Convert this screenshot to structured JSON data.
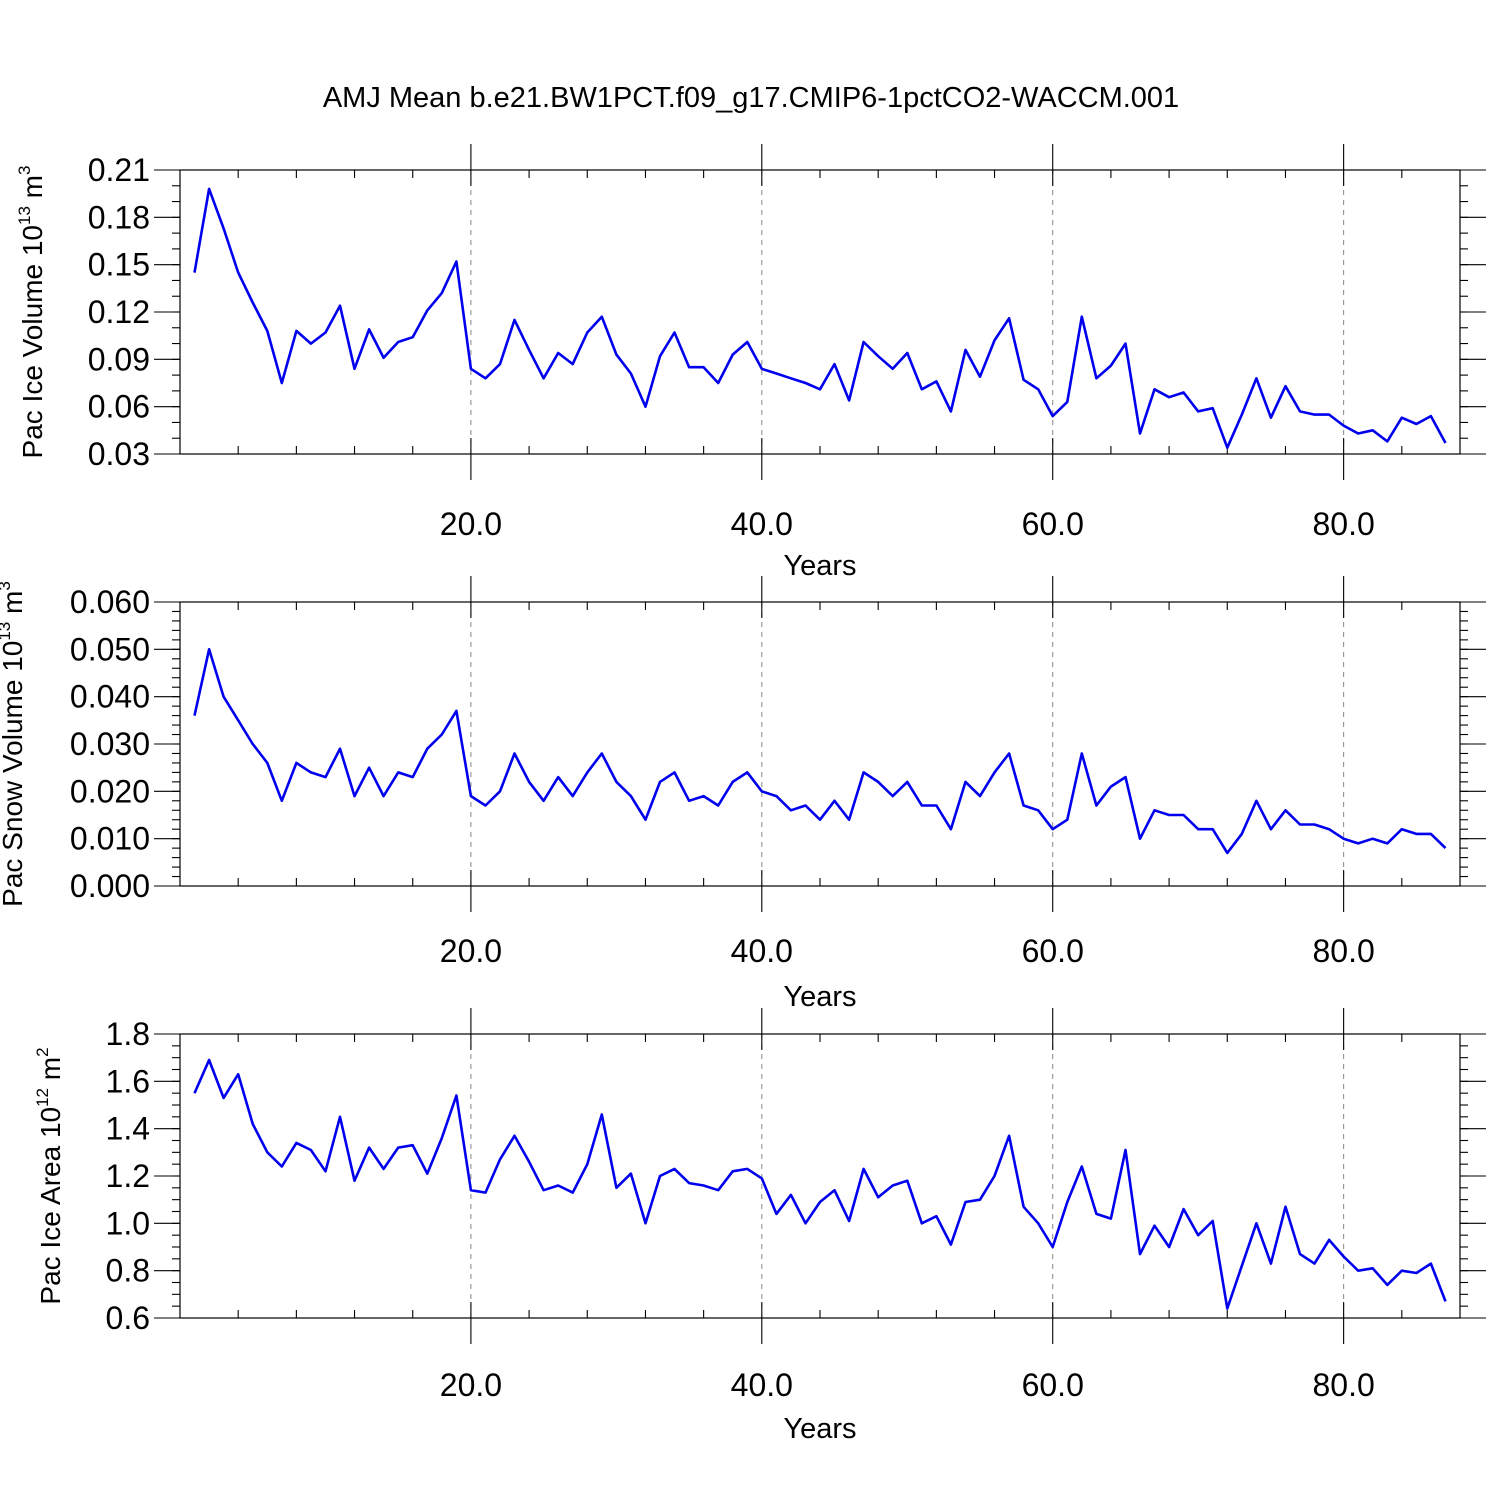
{
  "figure": {
    "title": "AMJ Mean b.e21.BW1PCT.f09_g17.CMIP6-1pctCO2-WACCM.001"
  },
  "chart_data": [
    {
      "type": "line",
      "name": "ice-volume",
      "ylabel_main": "Pac Ice Volume 10",
      "ylabel_exp": "13",
      "ylabel_unit": " m",
      "ylabel_unit_exp": "3",
      "xlabel": "Years",
      "xlim": [
        0,
        88
      ],
      "ylim": [
        0.03,
        0.21
      ],
      "x_ticks": [
        20,
        40,
        60,
        80
      ],
      "x_tick_labels": [
        "20.0",
        "40.0",
        "60.0",
        "80.0"
      ],
      "x_minor_step": 4,
      "y_ticks": [
        0.03,
        0.06,
        0.09,
        0.12,
        0.15,
        0.18,
        0.21
      ],
      "y_tick_labels": [
        "0.03",
        "0.06",
        "0.09",
        "0.12",
        "0.15",
        "0.18",
        "0.21"
      ],
      "y_minor_step": 0.01,
      "grid_x_dashed": true,
      "color": "#0000ee",
      "x_start": 1,
      "values": [
        0.145,
        0.198,
        0.173,
        0.145,
        0.126,
        0.108,
        0.075,
        0.108,
        0.1,
        0.107,
        0.124,
        0.084,
        0.109,
        0.091,
        0.101,
        0.104,
        0.121,
        0.132,
        0.152,
        0.084,
        0.078,
        0.087,
        0.115,
        0.096,
        0.078,
        0.094,
        0.087,
        0.107,
        0.117,
        0.093,
        0.081,
        0.06,
        0.092,
        0.107,
        0.085,
        0.085,
        0.075,
        0.093,
        0.101,
        0.084,
        0.081,
        0.078,
        0.075,
        0.071,
        0.087,
        0.064,
        0.101,
        0.092,
        0.084,
        0.094,
        0.071,
        0.076,
        0.057,
        0.096,
        0.079,
        0.102,
        0.116,
        0.077,
        0.071,
        0.054,
        0.063,
        0.117,
        0.078,
        0.086,
        0.1,
        0.043,
        0.071,
        0.066,
        0.069,
        0.057,
        0.059,
        0.034,
        0.055,
        0.078,
        0.053,
        0.073,
        0.057,
        0.055,
        0.055,
        0.048,
        0.043,
        0.045,
        0.038,
        0.053,
        0.049,
        0.054,
        0.037
      ]
    },
    {
      "type": "line",
      "name": "snow-volume",
      "ylabel_main": "Pac Snow Volume 10",
      "ylabel_exp": "13",
      "ylabel_unit": " m",
      "ylabel_unit_exp": "3",
      "xlabel": "Years",
      "xlim": [
        0,
        88
      ],
      "ylim": [
        0.0,
        0.06
      ],
      "x_ticks": [
        20,
        40,
        60,
        80
      ],
      "x_tick_labels": [
        "20.0",
        "40.0",
        "60.0",
        "80.0"
      ],
      "x_minor_step": 4,
      "y_ticks": [
        0.0,
        0.01,
        0.02,
        0.03,
        0.04,
        0.05,
        0.06
      ],
      "y_tick_labels": [
        "0.000",
        "0.010",
        "0.020",
        "0.030",
        "0.040",
        "0.050",
        "0.060"
      ],
      "y_minor_step": 0.002,
      "grid_x_dashed": true,
      "color": "#0000ee",
      "x_start": 1,
      "values": [
        0.036,
        0.05,
        0.04,
        0.035,
        0.03,
        0.026,
        0.018,
        0.026,
        0.024,
        0.023,
        0.029,
        0.019,
        0.025,
        0.019,
        0.024,
        0.023,
        0.029,
        0.032,
        0.037,
        0.019,
        0.017,
        0.02,
        0.028,
        0.022,
        0.018,
        0.023,
        0.019,
        0.024,
        0.028,
        0.022,
        0.019,
        0.014,
        0.022,
        0.024,
        0.018,
        0.019,
        0.017,
        0.022,
        0.024,
        0.02,
        0.019,
        0.016,
        0.017,
        0.014,
        0.018,
        0.014,
        0.024,
        0.022,
        0.019,
        0.022,
        0.017,
        0.017,
        0.012,
        0.022,
        0.019,
        0.024,
        0.028,
        0.017,
        0.016,
        0.012,
        0.014,
        0.028,
        0.017,
        0.021,
        0.023,
        0.01,
        0.016,
        0.015,
        0.015,
        0.012,
        0.012,
        0.007,
        0.011,
        0.018,
        0.012,
        0.016,
        0.013,
        0.013,
        0.012,
        0.01,
        0.009,
        0.01,
        0.009,
        0.012,
        0.011,
        0.011,
        0.008
      ]
    },
    {
      "type": "line",
      "name": "ice-area",
      "ylabel_main": "Pac Ice Area 10",
      "ylabel_exp": "12",
      "ylabel_unit": " m",
      "ylabel_unit_exp": "2",
      "xlabel": "Years",
      "xlim": [
        0,
        88
      ],
      "ylim": [
        0.6,
        1.8
      ],
      "x_ticks": [
        20,
        40,
        60,
        80
      ],
      "x_tick_labels": [
        "20.0",
        "40.0",
        "60.0",
        "80.0"
      ],
      "x_minor_step": 4,
      "y_ticks": [
        0.6,
        0.8,
        1.0,
        1.2,
        1.4,
        1.6,
        1.8
      ],
      "y_tick_labels": [
        "0.6",
        "0.8",
        "1.0",
        "1.2",
        "1.4",
        "1.6",
        "1.8"
      ],
      "y_minor_step": 0.05,
      "grid_x_dashed": true,
      "color": "#0000ee",
      "x_start": 1,
      "values": [
        1.55,
        1.69,
        1.53,
        1.63,
        1.42,
        1.3,
        1.24,
        1.34,
        1.31,
        1.22,
        1.45,
        1.18,
        1.32,
        1.23,
        1.32,
        1.33,
        1.21,
        1.36,
        1.54,
        1.14,
        1.13,
        1.27,
        1.37,
        1.26,
        1.14,
        1.16,
        1.13,
        1.25,
        1.46,
        1.15,
        1.21,
        1.0,
        1.2,
        1.23,
        1.17,
        1.16,
        1.14,
        1.22,
        1.23,
        1.19,
        1.04,
        1.12,
        1.0,
        1.09,
        1.14,
        1.01,
        1.23,
        1.11,
        1.16,
        1.18,
        1.0,
        1.03,
        0.91,
        1.09,
        1.1,
        1.2,
        1.37,
        1.07,
        1.0,
        0.9,
        1.09,
        1.24,
        1.04,
        1.02,
        1.31,
        0.87,
        0.99,
        0.9,
        1.06,
        0.95,
        1.01,
        0.64,
        0.82,
        1.0,
        0.83,
        1.07,
        0.87,
        0.83,
        0.93,
        0.86,
        0.8,
        0.81,
        0.74,
        0.8,
        0.79,
        0.83,
        0.67
      ]
    }
  ]
}
